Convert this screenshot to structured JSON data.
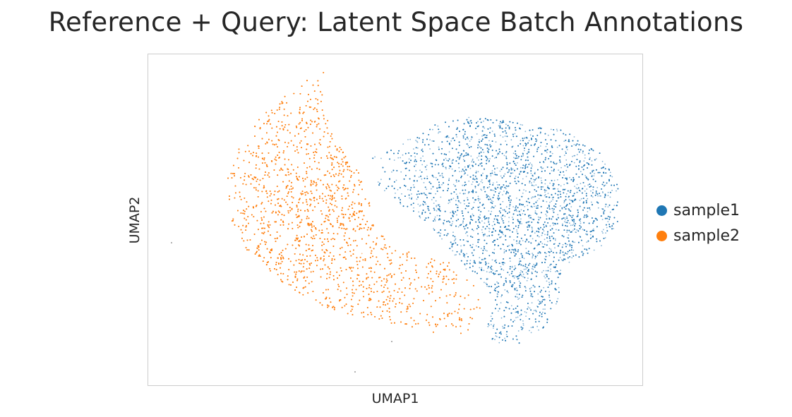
{
  "chart_data": {
    "type": "scatter",
    "title": "Reference + Query: Latent Space Batch Annotations",
    "xlabel": "UMAP1",
    "ylabel": "UMAP2",
    "grid": false,
    "legend_position": "right",
    "series": [
      {
        "name": "sample1",
        "color": "#1f77b4"
      },
      {
        "name": "sample2",
        "color": "#ff7f0e"
      }
    ]
  }
}
